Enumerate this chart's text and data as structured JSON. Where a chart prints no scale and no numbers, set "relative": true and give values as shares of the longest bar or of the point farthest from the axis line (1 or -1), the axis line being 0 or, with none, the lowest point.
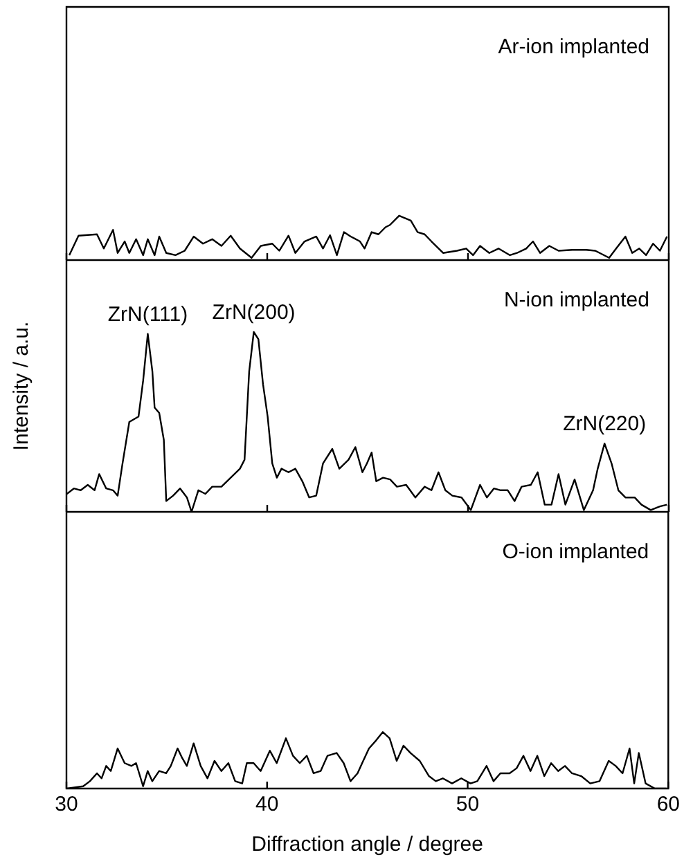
{
  "chart_data": [
    {
      "type": "line",
      "relative": true,
      "xlim": [
        30,
        60
      ],
      "xticks": [
        30,
        40,
        50,
        60
      ],
      "tick_labels": false,
      "annotations": [
        "Ar-ion implanted"
      ],
      "series": [
        {
          "color": "#000000",
          "x": [
            30.14,
            30.6,
            31.52,
            31.86,
            32.32,
            32.55,
            32.9,
            33.13,
            33.47,
            33.82,
            34.05,
            34.39,
            34.62,
            34.97,
            35.43,
            35.89,
            36.34,
            36.8,
            37.26,
            37.72,
            38.18,
            38.64,
            39.22,
            39.68,
            40.25,
            40.6,
            41.06,
            41.4,
            41.86,
            42.44,
            42.78,
            43.13,
            43.47,
            43.82,
            44.16,
            44.62,
            44.85,
            45.2,
            45.54,
            45.89,
            46.11,
            46.57,
            47.15,
            47.49,
            47.84,
            48.18,
            48.76,
            49.45,
            49.91,
            50.25,
            50.6,
            51.06,
            51.52,
            52.09,
            52.44,
            52.9,
            53.24,
            53.59,
            54.05,
            54.51,
            55.2,
            55.89,
            56.34,
            57.03,
            57.38,
            57.84,
            58.18,
            58.53,
            58.87,
            59.22,
            59.56,
            59.91
          ],
          "values": [
            0.11,
            0.55,
            0.58,
            0.26,
            0.68,
            0.16,
            0.42,
            0.16,
            0.47,
            0.11,
            0.47,
            0.11,
            0.53,
            0.16,
            0.11,
            0.21,
            0.53,
            0.37,
            0.47,
            0.32,
            0.55,
            0.26,
            0.05,
            0.32,
            0.37,
            0.21,
            0.55,
            0.16,
            0.42,
            0.53,
            0.26,
            0.56,
            0.11,
            0.63,
            0.53,
            0.42,
            0.26,
            0.63,
            0.58,
            0.74,
            0.79,
            1,
            0.89,
            0.63,
            0.58,
            0.42,
            0.16,
            0.21,
            0.26,
            0.11,
            0.32,
            0.16,
            0.26,
            0.11,
            0.16,
            0.26,
            0.42,
            0.16,
            0.32,
            0.21,
            0.23,
            0.23,
            0.21,
            0.05,
            0.26,
            0.53,
            0.16,
            0.26,
            0.11,
            0.37,
            0.21,
            0.53
          ]
        }
      ]
    },
    {
      "type": "line",
      "relative": true,
      "xlim": [
        30,
        60
      ],
      "xticks": [
        30,
        40,
        50,
        60
      ],
      "tick_labels": false,
      "ylabel": "Intensity / a.u.",
      "annotations": [
        "N-ion implanted",
        {
          "text": "ZrN(111)",
          "x": 34.05,
          "y": 0.99
        },
        {
          "text": "ZrN(200)",
          "x": 39.33,
          "y": 1
        },
        {
          "text": "ZrN(220)",
          "x": 56.8,
          "y": 0.38
        }
      ],
      "series": [
        {
          "color": "#000000",
          "x": [
            30.02,
            30.37,
            30.71,
            31.06,
            31.4,
            31.63,
            31.98,
            32.32,
            32.55,
            32.78,
            33.13,
            33.59,
            33.82,
            34.05,
            34.28,
            34.39,
            34.62,
            34.85,
            34.97,
            35.31,
            35.66,
            36,
            36.23,
            36.57,
            36.92,
            37.26,
            37.72,
            38.18,
            38.64,
            38.87,
            39.1,
            39.33,
            39.56,
            39.79,
            40.02,
            40.25,
            40.48,
            40.71,
            41.06,
            41.4,
            41.75,
            42.09,
            42.44,
            42.78,
            43.24,
            43.59,
            44.05,
            44.39,
            44.74,
            44.97,
            45.2,
            45.43,
            45.77,
            46.12,
            46.46,
            46.92,
            47.38,
            47.84,
            48.18,
            48.53,
            48.87,
            49.22,
            49.68,
            50.14,
            50.6,
            50.94,
            51.29,
            51.63,
            51.98,
            52.32,
            52.67,
            53.13,
            53.47,
            53.82,
            54.16,
            54.51,
            54.85,
            55.31,
            55.77,
            56.23,
            56.46,
            56.8,
            57.15,
            57.49,
            57.84,
            58.3,
            58.64,
            59.1,
            59.56,
            59.91
          ],
          "values": [
            0.1,
            0.13,
            0.12,
            0.15,
            0.12,
            0.21,
            0.13,
            0.12,
            0.09,
            0.26,
            0.5,
            0.53,
            0.73,
            0.99,
            0.78,
            0.58,
            0.55,
            0.4,
            0.06,
            0.09,
            0.13,
            0.08,
            0,
            0.12,
            0.1,
            0.14,
            0.14,
            0.19,
            0.24,
            0.29,
            0.78,
            1,
            0.96,
            0.71,
            0.53,
            0.27,
            0.19,
            0.24,
            0.22,
            0.24,
            0.17,
            0.08,
            0.09,
            0.27,
            0.35,
            0.24,
            0.29,
            0.36,
            0.22,
            0.27,
            0.33,
            0.17,
            0.19,
            0.18,
            0.14,
            0.15,
            0.08,
            0.14,
            0.12,
            0.22,
            0.12,
            0.09,
            0.08,
            0.01,
            0.15,
            0.08,
            0.13,
            0.12,
            0.12,
            0.06,
            0.14,
            0.15,
            0.22,
            0.04,
            0.04,
            0.21,
            0.04,
            0.18,
            0.01,
            0.12,
            0.24,
            0.38,
            0.27,
            0.12,
            0.08,
            0.08,
            0.04,
            0.01,
            0.03,
            0.04
          ]
        }
      ]
    },
    {
      "type": "line",
      "relative": true,
      "xlim": [
        30,
        60
      ],
      "xticks": [
        30,
        40,
        50,
        60
      ],
      "xlabel": "Diffraction angle / degree",
      "annotations": [
        "O-ion implanted"
      ],
      "series": [
        {
          "color": "#000000",
          "x": [
            30.02,
            30.83,
            31.17,
            31.52,
            31.75,
            31.98,
            32.21,
            32.55,
            32.9,
            33.24,
            33.47,
            33.82,
            34.05,
            34.28,
            34.62,
            34.97,
            35.2,
            35.54,
            35.77,
            36,
            36.34,
            36.69,
            37.03,
            37.38,
            37.72,
            38.07,
            38.41,
            38.76,
            38.99,
            39.33,
            39.68,
            40.14,
            40.48,
            40.94,
            41.29,
            41.63,
            41.98,
            42.32,
            42.67,
            43.01,
            43.47,
            43.82,
            44.16,
            44.51,
            44.74,
            45.08,
            45.43,
            45.77,
            46.11,
            46.46,
            46.8,
            47.15,
            47.61,
            48.07,
            48.41,
            48.76,
            49.22,
            49.68,
            50.14,
            50.48,
            50.94,
            51.29,
            51.63,
            52.09,
            52.44,
            52.78,
            53.13,
            53.47,
            53.82,
            54.16,
            54.51,
            54.85,
            55.2,
            55.66,
            56.11,
            56.57,
            57.03,
            57.38,
            57.72,
            58.07,
            58.3,
            58.53,
            58.87,
            59.33,
            59.91
          ],
          "values": [
            0,
            0.04,
            0.13,
            0.27,
            0.18,
            0.4,
            0.31,
            0.71,
            0.45,
            0.4,
            0.45,
            0.04,
            0.31,
            0.13,
            0.31,
            0.27,
            0.4,
            0.71,
            0.54,
            0.4,
            0.8,
            0.4,
            0.18,
            0.49,
            0.31,
            0.45,
            0.13,
            0.09,
            0.45,
            0.45,
            0.31,
            0.67,
            0.45,
            0.89,
            0.58,
            0.45,
            0.58,
            0.27,
            0.31,
            0.58,
            0.63,
            0.45,
            0.13,
            0.27,
            0.45,
            0.71,
            0.85,
            1,
            0.89,
            0.49,
            0.76,
            0.63,
            0.49,
            0.22,
            0.13,
            0.18,
            0.09,
            0.18,
            0.09,
            0.13,
            0.4,
            0.13,
            0.27,
            0.27,
            0.36,
            0.58,
            0.31,
            0.58,
            0.22,
            0.45,
            0.31,
            0.4,
            0.27,
            0.22,
            0.09,
            0.13,
            0.49,
            0.4,
            0.27,
            0.71,
            0.09,
            0.63,
            0.09,
            0,
            0
          ]
        }
      ]
    }
  ]
}
